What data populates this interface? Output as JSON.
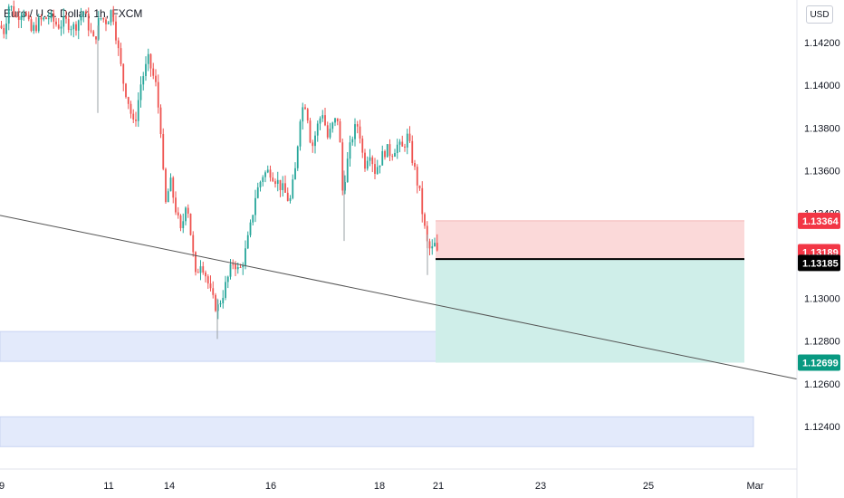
{
  "title": "Euro / U.S. Dollar, 1h, FXCM",
  "currency_label": "USD",
  "colors": {
    "up": "#26a69a",
    "down": "#ef5350",
    "stop_zone": "#fbd9d9",
    "target_zone": "#cfeee9",
    "demand_zone": "#e3eafb",
    "trendline": "#555555",
    "stop_badge": "#f23645",
    "current_badge": "#f23645",
    "entry_badge": "#000000",
    "target_badge": "#089981"
  },
  "chart_data": {
    "type": "candlestick",
    "symbol": "EURUSD",
    "timeframe": "1h",
    "ylim": [
      1.122,
      1.144
    ],
    "y_ticks": [
      "1.14200",
      "1.14000",
      "1.13800",
      "1.13600",
      "1.13400",
      "1.13000",
      "1.12800",
      "1.12600",
      "1.12400"
    ],
    "y_tick_values": [
      1.142,
      1.14,
      1.138,
      1.136,
      1.134,
      1.13,
      1.128,
      1.126,
      1.124
    ],
    "x_ticks": [
      "9",
      "11",
      "14",
      "16",
      "18",
      "21",
      "23",
      "25",
      "Mar"
    ],
    "price_path": [
      [
        0,
        1.1428
      ],
      [
        4,
        1.1425
      ],
      [
        10,
        1.1438
      ],
      [
        18,
        1.1432
      ],
      [
        26,
        1.1436
      ],
      [
        34,
        1.1425
      ],
      [
        44,
        1.143
      ],
      [
        54,
        1.1432
      ],
      [
        64,
        1.1428
      ],
      [
        72,
        1.143
      ],
      [
        82,
        1.1427
      ],
      [
        92,
        1.1435
      ],
      [
        104,
        1.142
      ],
      [
        110,
        1.1432
      ],
      [
        118,
        1.143
      ],
      [
        124,
        1.1436
      ],
      [
        130,
        1.1418
      ],
      [
        136,
        1.1402
      ],
      [
        142,
        1.1392
      ],
      [
        148,
        1.138
      ],
      [
        156,
        1.1402
      ],
      [
        164,
        1.1412
      ],
      [
        172,
        1.14
      ],
      [
        178,
        1.1378
      ],
      [
        182,
        1.1342
      ],
      [
        188,
        1.1355
      ],
      [
        194,
        1.1342
      ],
      [
        200,
        1.133
      ],
      [
        206,
        1.1348
      ],
      [
        212,
        1.1325
      ],
      [
        216,
        1.131
      ],
      [
        222,
        1.1318
      ],
      [
        228,
        1.131
      ],
      [
        234,
        1.13
      ],
      [
        240,
        1.1295
      ],
      [
        246,
        1.1302
      ],
      [
        252,
        1.131
      ],
      [
        258,
        1.1318
      ],
      [
        264,
        1.1312
      ],
      [
        270,
        1.132
      ],
      [
        276,
        1.1332
      ],
      [
        282,
        1.1348
      ],
      [
        290,
        1.1358
      ],
      [
        298,
        1.136
      ],
      [
        306,
        1.1355
      ],
      [
        314,
        1.135
      ],
      [
        320,
        1.1345
      ],
      [
        326,
        1.136
      ],
      [
        332,
        1.1388
      ],
      [
        338,
        1.1392
      ],
      [
        344,
        1.137
      ],
      [
        350,
        1.138
      ],
      [
        356,
        1.1388
      ],
      [
        362,
        1.1375
      ],
      [
        368,
        1.1382
      ],
      [
        374,
        1.1385
      ],
      [
        378,
        1.135
      ],
      [
        384,
        1.1365
      ],
      [
        390,
        1.1378
      ],
      [
        396,
        1.1382
      ],
      [
        402,
        1.1362
      ],
      [
        408,
        1.137
      ],
      [
        414,
        1.136
      ],
      [
        420,
        1.1365
      ],
      [
        426,
        1.137
      ],
      [
        432,
        1.1368
      ],
      [
        438,
        1.1372
      ],
      [
        444,
        1.137
      ],
      [
        450,
        1.1376
      ],
      [
        454,
        1.1368
      ],
      [
        458,
        1.136
      ],
      [
        464,
        1.1348
      ],
      [
        468,
        1.1335
      ],
      [
        472,
        1.1325
      ],
      [
        476,
        1.1322
      ],
      [
        480,
        1.1325
      ],
      [
        484,
        1.13189
      ]
    ],
    "annotations": {
      "trendline": {
        "from": [
          0,
          1.1339
        ],
        "to": [
          880,
          1.12622
        ]
      },
      "position": {
        "type": "short",
        "x_start": 481,
        "x_end": 822,
        "entry": 1.13185,
        "stop": 1.13364,
        "target": 1.12699
      },
      "demand_zones": [
        {
          "x_start": 0,
          "x_end": 595,
          "top": 1.12845,
          "bottom": 1.12705
        },
        {
          "x_start": 0,
          "x_end": 832,
          "top": 1.12445,
          "bottom": 1.12305
        }
      ]
    },
    "price_labels": {
      "stop": "1.13364",
      "current": "1.13189",
      "entry": "1.13185",
      "target": "1.12699"
    }
  }
}
